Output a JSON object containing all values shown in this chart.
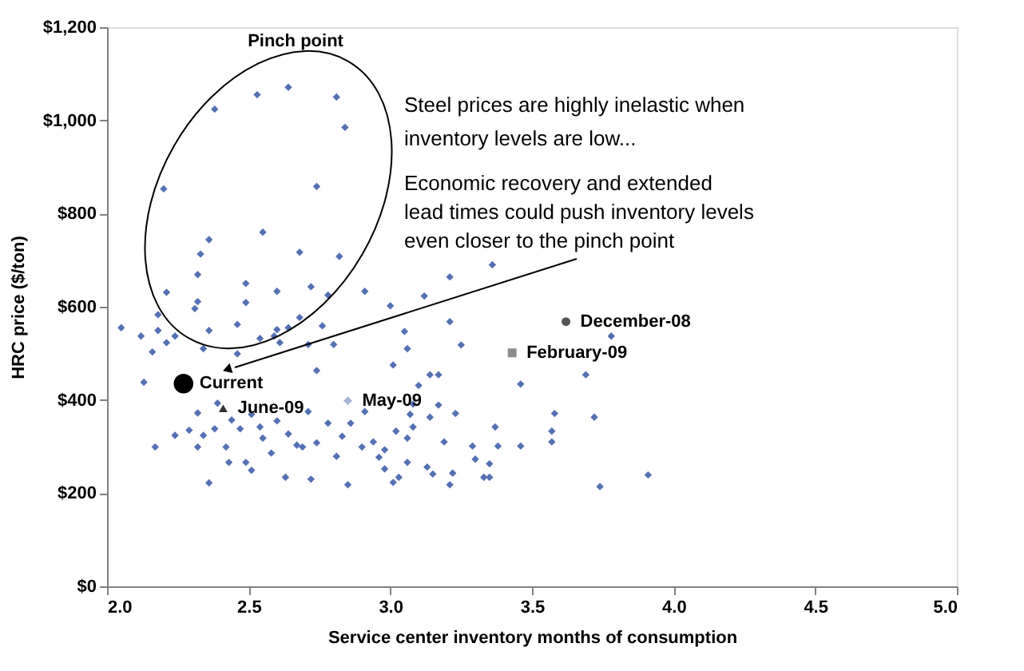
{
  "chart_data": {
    "type": "scatter",
    "xlabel": "Service center inventory months of consumption",
    "ylabel": "HRC price ($/ton)",
    "xlim": [
      2.0,
      5.0
    ],
    "xticks": [
      {
        "value": 2,
        "label": "2.0"
      },
      {
        "value": 2.5,
        "label": "2.5"
      },
      {
        "value": 3,
        "label": "3.0"
      },
      {
        "value": 3.5,
        "label": "3.5"
      },
      {
        "value": 4,
        "label": "4.0"
      },
      {
        "value": 4.5,
        "label": "4.5"
      },
      {
        "value": 5,
        "label": "5.0"
      }
    ],
    "ylim": [
      0,
      1200
    ],
    "yticks": [
      {
        "value": 0,
        "label": "$0"
      },
      {
        "value": 200,
        "label": "$200"
      },
      {
        "value": 400,
        "label": "$400"
      },
      {
        "value": 600,
        "label": "$600"
      },
      {
        "value": 800,
        "label": "$800"
      },
      {
        "value": 1000,
        "label": "$1,000"
      },
      {
        "value": 1200,
        "label": "$1,200"
      }
    ],
    "grid": false,
    "annotations": [
      "Pinch point",
      "Steel prices are highly inelastic when\ninventory levels are low...",
      "Economic recovery and extended\nlead times could push inventory levels\neven closer to the pinch point"
    ],
    "series": [
      {
        "color": "#5470b4",
        "marker": "diamond",
        "x": [
          2.38,
          2.53,
          2.64,
          2.81,
          2.84,
          2.2,
          2.74,
          2.36,
          2.55,
          2.33,
          2.68,
          2.82,
          2.32,
          2.49,
          2.21,
          2.6,
          2.72,
          2.78,
          2.91,
          3.21,
          3.12,
          3.0,
          2.32,
          2.31,
          2.18,
          2.49,
          2.05,
          3.21,
          3.05,
          2.46,
          2.36,
          2.18,
          2.76,
          2.68,
          2.6,
          2.64,
          3.36,
          2.12,
          2.16,
          2.21,
          2.24,
          2.34,
          2.46,
          2.54,
          2.59,
          2.61,
          2.71,
          2.8,
          2.74,
          2.13,
          2.17,
          2.24,
          2.29,
          2.32,
          2.34,
          2.38,
          2.39,
          2.42,
          2.36,
          2.44,
          2.47,
          2.49,
          2.51,
          2.54,
          2.55,
          2.58,
          2.6,
          2.63,
          2.64,
          2.67,
          2.69,
          2.71,
          2.72,
          2.74,
          2.78,
          2.81,
          2.83,
          2.85,
          2.86,
          2.9,
          2.91,
          2.94,
          2.96,
          2.51,
          2.43,
          2.32,
          3.06,
          3.25,
          3.01,
          3.14,
          3.17,
          3.1,
          3.46,
          3.78,
          3.69,
          3.08,
          3.17,
          3.07,
          3.14,
          3.23,
          3.58,
          3.72,
          3.08,
          3.37,
          3.57,
          3.02,
          3.06,
          3.19,
          3.29,
          3.38,
          3.46,
          3.57,
          2.98,
          3.06,
          3.13,
          3.3,
          3.35,
          2.98,
          3.15,
          3.22,
          3.03,
          3.33,
          3.35,
          3.01,
          3.21,
          3.91,
          3.74
        ],
        "values": [
          1024,
          1055,
          1071,
          1050,
          985,
          853,
          858,
          744,
          760,
          713,
          717,
          708,
          669,
          650,
          631,
          633,
          643,
          625,
          633,
          664,
          623,
          602,
          611,
          596,
          583,
          609,
          555,
          568,
          547,
          562,
          549,
          549,
          559,
          577,
          551,
          555,
          690,
          537,
          503,
          523,
          537,
          510,
          499,
          532,
          537,
          523,
          519,
          519,
          463,
          438,
          299,
          324,
          335,
          372,
          324,
          338,
          393,
          299,
          222,
          357,
          338,
          266,
          369,
          342,
          318,
          286,
          355,
          234,
          327,
          303,
          299,
          375,
          230,
          308,
          350,
          279,
          322,
          218,
          350,
          299,
          375,
          310,
          277,
          249,
          266,
          299,
          510,
          518,
          475,
          454,
          454,
          431,
          434,
          537,
          454,
          391,
          389,
          369,
          363,
          371,
          371,
          363,
          342,
          342,
          333,
          333,
          318,
          310,
          301,
          301,
          301,
          310,
          293,
          266,
          256,
          273,
          263,
          252,
          241,
          243,
          234,
          234,
          234,
          223,
          218,
          239,
          214
        ]
      },
      {
        "name": "Current",
        "color": "#000000",
        "marker": "circle",
        "x": [
          2.27
        ],
        "values": [
          435
        ]
      },
      {
        "name": "June-09",
        "color": "#333333",
        "marker": "triangle",
        "x": [
          2.41
        ],
        "values": [
          382
        ]
      },
      {
        "name": "May-09",
        "color": "#a9b7d6",
        "marker": "diamond",
        "x": [
          2.85
        ],
        "values": [
          398
        ]
      },
      {
        "name": "February-09",
        "color": "#8c8c8c",
        "marker": "square",
        "x": [
          3.43
        ],
        "values": [
          501
        ]
      },
      {
        "name": "December-08",
        "color": "#555555",
        "marker": "circle",
        "x": [
          3.62
        ],
        "values": [
          568
        ]
      }
    ]
  }
}
